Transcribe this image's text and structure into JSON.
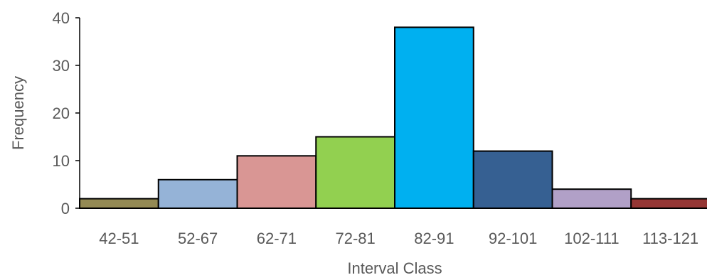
{
  "chart_data": {
    "type": "bar",
    "title": "",
    "xlabel": "Interval Class",
    "ylabel": "Frequency",
    "categories": [
      "42-51",
      "52-67",
      "62-71",
      "72-81",
      "82-91",
      "92-101",
      "102-111",
      "113-121"
    ],
    "values": [
      2,
      6,
      11,
      15,
      38,
      12,
      4,
      2
    ],
    "colors": [
      "#948a54",
      "#95b3d7",
      "#d99694",
      "#92d050",
      "#00b0f0",
      "#366092",
      "#b1a0c7",
      "#953735"
    ],
    "ylim": [
      0,
      40
    ],
    "yticks": [
      0,
      10,
      20,
      30,
      40
    ],
    "grid": false,
    "legend": "none"
  }
}
